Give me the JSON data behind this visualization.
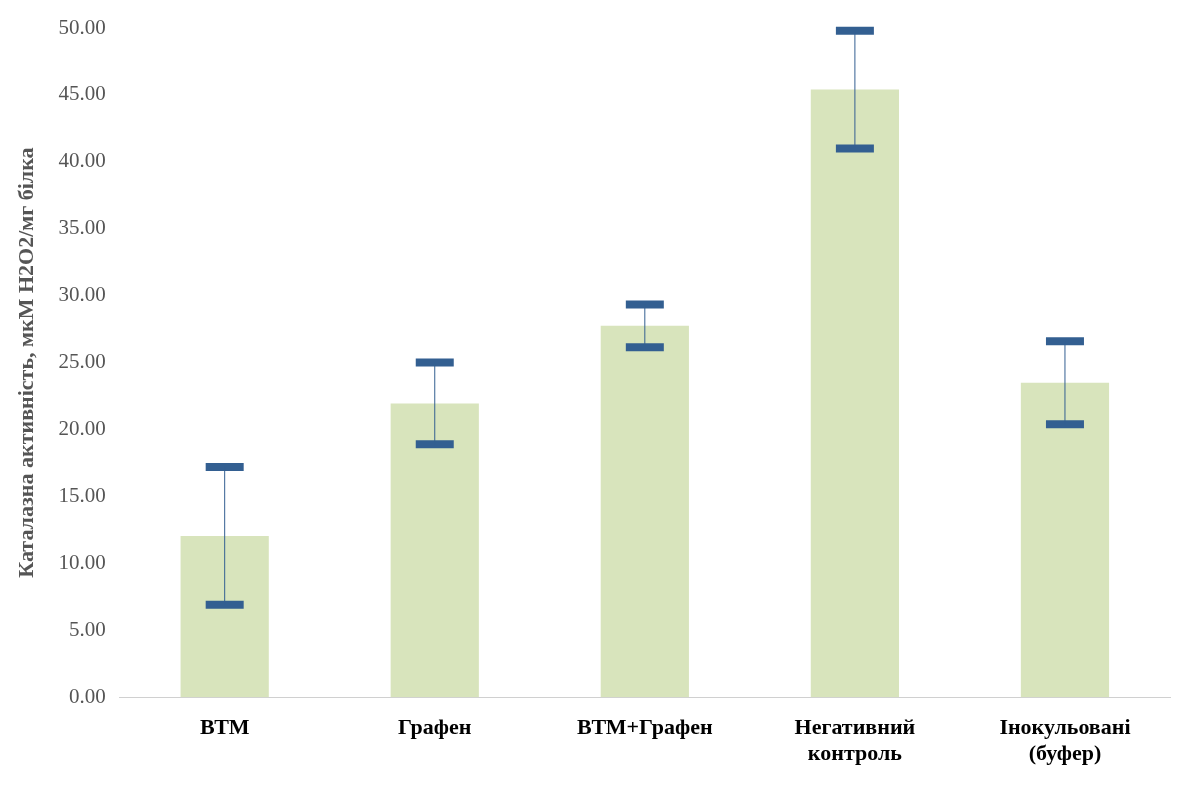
{
  "chart_data": {
    "type": "bar",
    "ylabel": "Каталазна активність, мкМ Н2О2/мг білка",
    "categories": [
      "ВТМ",
      "Графен",
      "ВТМ+Графен",
      "Негативний контроль",
      "Інокульовані (буфер)"
    ],
    "values": [
      12.05,
      21.95,
      27.75,
      45.4,
      23.5
    ],
    "errors": [
      5.15,
      3.05,
      1.6,
      4.4,
      3.1
    ],
    "color": "#d8e4bc",
    "ylim": [
      0,
      50
    ],
    "yticks": [
      {
        "value": 0,
        "label": "0.00"
      },
      {
        "value": 5,
        "label": "5.00"
      },
      {
        "value": 10,
        "label": "10.00"
      },
      {
        "value": 15,
        "label": "15.00"
      },
      {
        "value": 20,
        "label": "20.00"
      },
      {
        "value": 25,
        "label": "25.00"
      },
      {
        "value": 30,
        "label": "30.00"
      },
      {
        "value": 35,
        "label": "35.00"
      },
      {
        "value": 40,
        "label": "40.00"
      },
      {
        "value": 45,
        "label": "45.00"
      },
      {
        "value": 50,
        "label": "50.00"
      }
    ],
    "grid": false,
    "legend": false
  }
}
